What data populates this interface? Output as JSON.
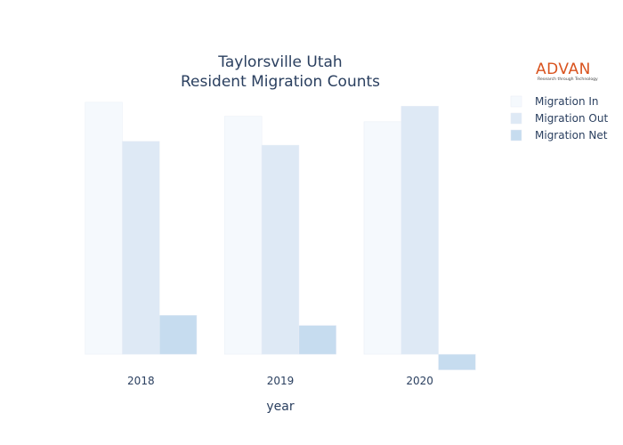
{
  "logo": {
    "name": "ADVAN",
    "tagline": "Research through Technology"
  },
  "chart_data": {
    "type": "bar",
    "title": "Taylorsville Utah",
    "subtitle": "Resident Migration Counts",
    "xlabel": "year",
    "ylabel": "",
    "categories": [
      "2018",
      "2019",
      "2020"
    ],
    "ylim": [
      -250,
      3400
    ],
    "grid": false,
    "legend_position": "top-right",
    "series": [
      {
        "name": "Migration In",
        "values": [
          3230,
          3050,
          2980
        ],
        "color": "#f5f9fd"
      },
      {
        "name": "Migration Out",
        "values": [
          2730,
          2680,
          3180
        ],
        "color": "#dee9f5"
      },
      {
        "name": "Migration Net",
        "values": [
          500,
          370,
          -200
        ],
        "color": "#c6dcef"
      }
    ]
  }
}
